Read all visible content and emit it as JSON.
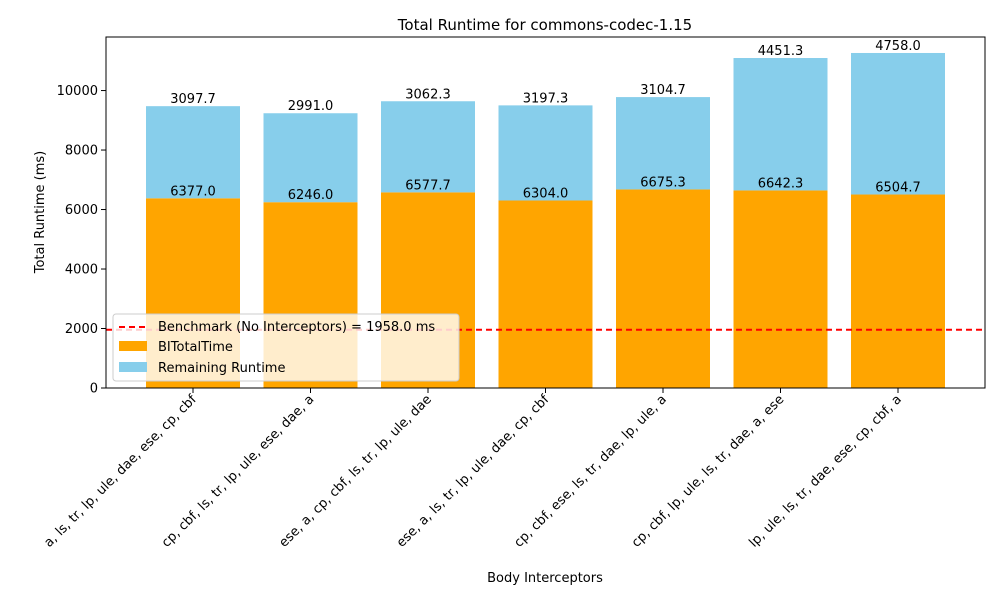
{
  "chart_data": {
    "type": "bar",
    "stacked": true,
    "title": "Total Runtime for commons-codec-1.15",
    "xlabel": "Body Interceptors",
    "ylabel": "Total Runtime (ms)",
    "ylim": [
      0,
      11800
    ],
    "yticks": [
      0,
      2000,
      4000,
      6000,
      8000,
      10000
    ],
    "grid": false,
    "legend_placement": "lower-left",
    "categories": [
      "a, ls, tr, lp, ule, dae, ese, cp, cbf",
      "cp, cbf, ls, tr, lp, ule, ese, dae, a",
      "ese, a, cp, cbf, ls, tr, lp, ule, dae",
      "ese, a, ls, tr, lp, ule, dae, cp, cbf",
      "cp, cbf, ese, ls, tr, dae, lp, ule, a",
      "cp, cbf, lp, ule, ls, tr, dae, a, ese",
      "lp, ule, ls, tr, dae, ese, cp, cbf, a"
    ],
    "series": [
      {
        "name": "BITotalTime",
        "color": "#FFA500",
        "values": [
          6377.0,
          6246.0,
          6577.7,
          6304.0,
          6675.3,
          6642.3,
          6504.7
        ],
        "labels": [
          "6377.0",
          "6246.0",
          "6577.7",
          "6304.0",
          "6675.3",
          "6642.3",
          "6504.7"
        ]
      },
      {
        "name": "Remaining Runtime",
        "color": "#87CEEB",
        "values": [
          3097.7,
          2991.0,
          3062.3,
          3197.3,
          3104.7,
          4451.3,
          4758.0
        ],
        "labels": [
          "3097.7",
          "2991.0",
          "3062.3",
          "3197.3",
          "3104.7",
          "4451.3",
          "4758.0"
        ]
      }
    ],
    "reference_line": {
      "name": "Benchmark (No Interceptors) = 1958.0 ms",
      "value": 1958.0,
      "color": "#FF0000",
      "style": "dashed"
    }
  }
}
